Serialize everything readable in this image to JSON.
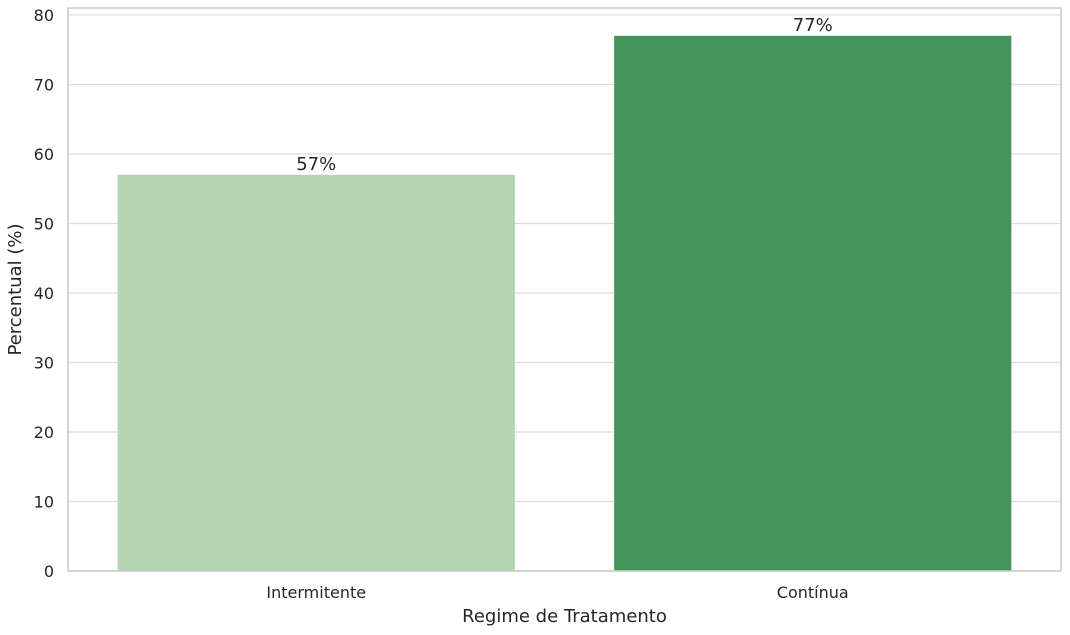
{
  "chart_data": {
    "type": "bar",
    "title": "",
    "xlabel": "Regime de Tratamento",
    "ylabel": "Percentual (%)",
    "categories": [
      "Intermitente",
      "Contínua"
    ],
    "values": [
      57,
      77
    ],
    "data_labels": [
      "57%",
      "77%"
    ],
    "ylim": [
      0,
      81
    ],
    "yticks": [
      0,
      10,
      20,
      30,
      40,
      50,
      60,
      70,
      80
    ],
    "grid": "horizontal",
    "colors": [
      "#b3d6b0",
      "#44935a"
    ],
    "gridline_color": "#dcdcdc",
    "frame_color": "#cccccc"
  }
}
